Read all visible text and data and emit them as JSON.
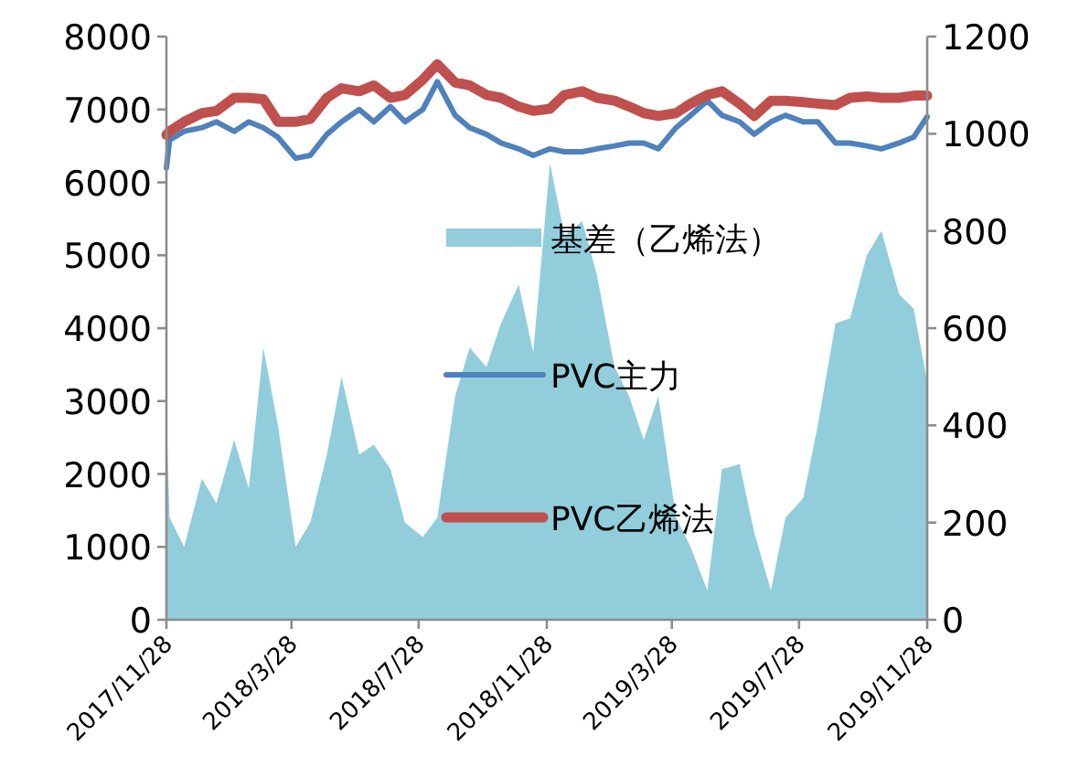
{
  "chart_data": {
    "type": "line",
    "x": [
      "2017-11-28",
      "2017-12-01",
      "2017-12-15",
      "2018-01-01",
      "2018-01-15",
      "2018-02-01",
      "2018-02-15",
      "2018-03-01",
      "2018-03-15",
      "2018-04-01",
      "2018-04-15",
      "2018-05-01",
      "2018-05-15",
      "2018-06-01",
      "2018-06-15",
      "2018-07-01",
      "2018-07-15",
      "2018-08-01",
      "2018-08-15",
      "2018-09-01",
      "2018-09-15",
      "2018-10-01",
      "2018-10-15",
      "2018-11-01",
      "2018-11-15",
      "2018-12-01",
      "2018-12-15",
      "2019-01-01",
      "2019-01-15",
      "2019-02-01",
      "2019-02-15",
      "2019-03-01",
      "2019-03-15",
      "2019-04-01",
      "2019-04-15",
      "2019-05-01",
      "2019-05-15",
      "2019-06-01",
      "2019-06-15",
      "2019-07-01",
      "2019-07-15",
      "2019-08-01",
      "2019-08-15",
      "2019-09-01",
      "2019-09-15",
      "2019-10-01",
      "2019-10-15",
      "2019-11-01",
      "2019-11-15",
      "2019-11-28"
    ],
    "series": [
      {
        "name": "基差（乙烯法）",
        "type": "area",
        "axis": "y2",
        "color": "#92cddc",
        "values": [
          420,
          210,
          150,
          290,
          240,
          370,
          270,
          560,
          400,
          150,
          200,
          340,
          500,
          340,
          360,
          310,
          200,
          170,
          210,
          460,
          560,
          520,
          610,
          690,
          550,
          940,
          790,
          820,
          710,
          520,
          460,
          370,
          460,
          210,
          150,
          60,
          310,
          320,
          180,
          60,
          210,
          250,
          400,
          610,
          620,
          750,
          800,
          670,
          640,
          490
        ]
      },
      {
        "name": "PVC主力",
        "type": "line",
        "axis": "y",
        "color": "#4f81bd",
        "values": [
          6200,
          6580,
          6700,
          6750,
          6830,
          6700,
          6830,
          6750,
          6620,
          6330,
          6370,
          6660,
          6830,
          7000,
          6830,
          7040,
          6830,
          7000,
          7380,
          6920,
          6750,
          6660,
          6540,
          6460,
          6370,
          6460,
          6420,
          6420,
          6460,
          6500,
          6540,
          6540,
          6460,
          6750,
          6920,
          7120,
          6920,
          6830,
          6660,
          6830,
          6920,
          6830,
          6830,
          6540,
          6540,
          6500,
          6460,
          6540,
          6620,
          6900
        ]
      },
      {
        "name": "PVC乙烯法",
        "type": "line",
        "axis": "y",
        "color": "#c0504d",
        "values": [
          6650,
          6700,
          6830,
          6950,
          6980,
          7160,
          7160,
          7140,
          6830,
          6830,
          6870,
          7160,
          7290,
          7250,
          7330,
          7160,
          7200,
          7410,
          7620,
          7370,
          7330,
          7200,
          7160,
          7040,
          6980,
          7010,
          7200,
          7250,
          7160,
          7120,
          7040,
          6950,
          6910,
          6950,
          7080,
          7200,
          7250,
          7080,
          6910,
          7120,
          7120,
          7100,
          7080,
          7060,
          7160,
          7180,
          7160,
          7160,
          7190,
          7190
        ]
      }
    ],
    "xlim": [
      "2017-11-28",
      "2019-11-28"
    ],
    "xticks": [
      {
        "value": "2017-11-28",
        "label": "2017/11/28"
      },
      {
        "value": "2018-03-28",
        "label": "2018/3/28"
      },
      {
        "value": "2018-07-28",
        "label": "2018/7/28"
      },
      {
        "value": "2018-11-28",
        "label": "2018/11/28"
      },
      {
        "value": "2019-03-28",
        "label": "2019/3/28"
      },
      {
        "value": "2019-07-28",
        "label": "2019/7/28"
      },
      {
        "value": "2019-11-28",
        "label": "2019/11/28"
      }
    ],
    "ylim": [
      0,
      8000
    ],
    "yticks": [
      0,
      1000,
      2000,
      3000,
      4000,
      5000,
      6000,
      7000,
      8000
    ],
    "y2lim": [
      0,
      1200
    ],
    "y2ticks": [
      0,
      200,
      400,
      600,
      800,
      1000,
      1200
    ],
    "grid": false,
    "legend": "center",
    "marker": "none",
    "line_style": "solid"
  }
}
